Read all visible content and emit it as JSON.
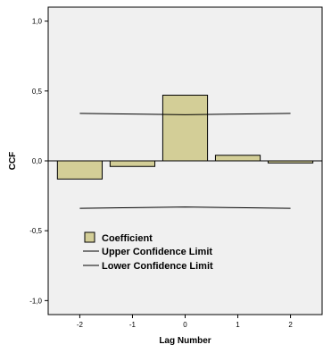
{
  "chart_data": {
    "type": "bar",
    "xlabel": "Lag Number",
    "ylabel": "CCF",
    "ylim": [
      -1.1,
      1.1
    ],
    "yticks": [
      -1.0,
      -0.5,
      0.0,
      0.5,
      1.0
    ],
    "ytick_labels": [
      "-1,0",
      "-0,5",
      "0,0",
      "0,5",
      "1,0"
    ],
    "categories": [
      "-2",
      "-1",
      "0",
      "1",
      "2"
    ],
    "x": [
      -2,
      -1,
      0,
      1,
      2
    ],
    "series": [
      {
        "name": "Coefficient",
        "type": "bar",
        "values": [
          -0.13,
          -0.04,
          0.47,
          0.04,
          -0.015
        ]
      },
      {
        "name": "Upper Confidence Limit",
        "type": "line",
        "values": [
          0.34,
          0.335,
          0.33,
          0.335,
          0.34
        ]
      },
      {
        "name": "Lower Confidence Limit",
        "type": "line",
        "values": [
          -0.34,
          -0.335,
          -0.33,
          -0.335,
          -0.34
        ]
      }
    ],
    "legend": [
      "Coefficient",
      "Upper Confidence Limit",
      "Lower Confidence Limit"
    ],
    "legend_placement": "bottom-left",
    "grid": false,
    "colors": {
      "plot_background": "#f0f0f0",
      "bar_fill": "#d3ce97",
      "bar_stroke": "#000000",
      "line": "#000000"
    }
  }
}
